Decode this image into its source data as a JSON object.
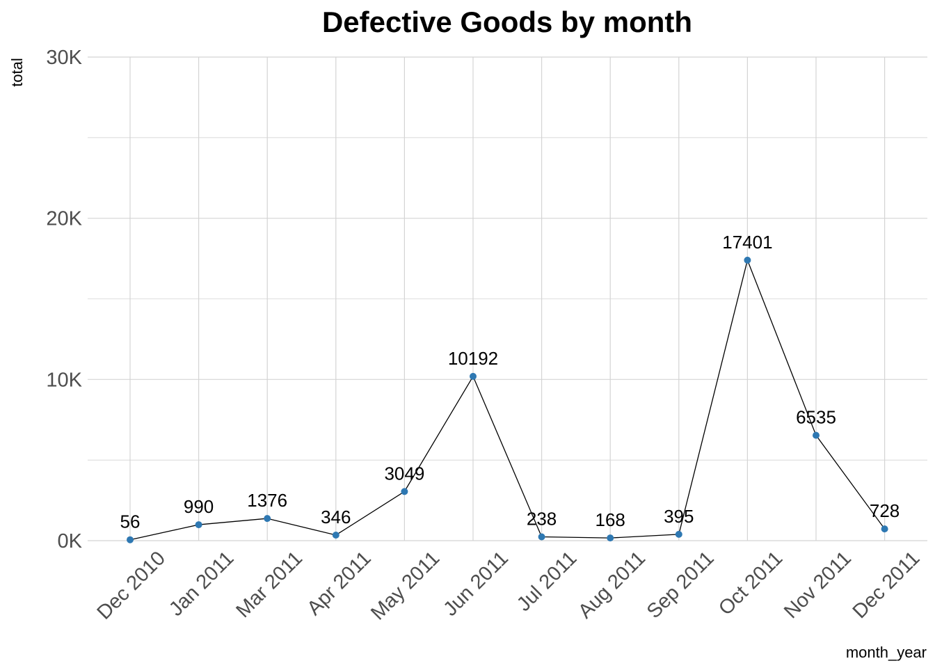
{
  "chart_data": {
    "type": "line",
    "title": "Defective Goods by month",
    "xlabel": "month_year",
    "ylabel": "total",
    "categories": [
      "Dec 2010",
      "Jan 2011",
      "Mar 2011",
      "Apr 2011",
      "May 2011",
      "Jun 2011",
      "Jul 2011",
      "Aug 2011",
      "Sep 2011",
      "Oct 2011",
      "Nov 2011",
      "Dec 2011"
    ],
    "values": [
      56,
      990,
      1376,
      346,
      3049,
      10192,
      238,
      168,
      395,
      17401,
      6535,
      728
    ],
    "data_labels": [
      "56",
      "990",
      "1376",
      "346",
      "3049",
      "10192",
      "238",
      "168",
      "395",
      "17401",
      "6535",
      "728"
    ],
    "ylim": [
      0,
      30000
    ],
    "yticks": [
      0,
      10000,
      20000,
      30000
    ],
    "ytick_labels": [
      "0K",
      "10K",
      "20K",
      "30K"
    ],
    "grid": true,
    "legend": "none",
    "point_color": "#2E78B2",
    "line_color": "#000000"
  }
}
